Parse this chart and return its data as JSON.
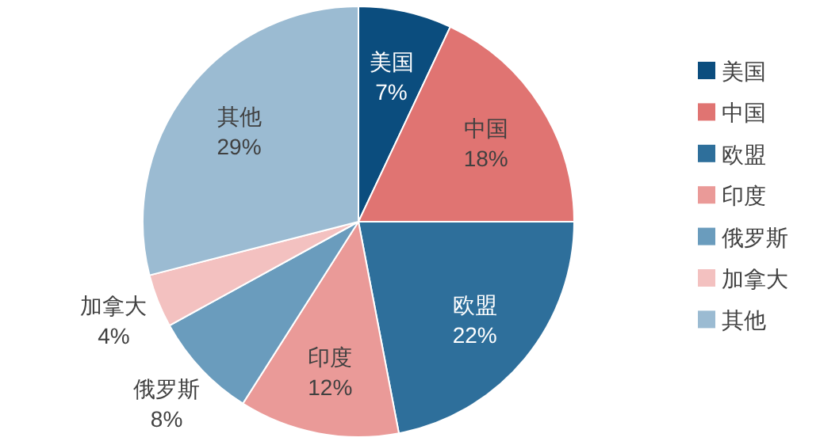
{
  "chart_data": {
    "type": "pie",
    "categories": [
      "美国",
      "中国",
      "欧盟",
      "印度",
      "俄罗斯",
      "加拿大",
      "其他"
    ],
    "values": [
      7,
      18,
      22,
      12,
      8,
      4,
      29
    ],
    "colors": [
      "#0b4d7e",
      "#e07472",
      "#2e6f9b",
      "#ea9a98",
      "#6a9cbd",
      "#f3c1c0",
      "#9bbbd2"
    ],
    "value_labels": [
      "7%",
      "18%",
      "22%",
      "12%",
      "8%",
      "4%",
      "29%"
    ],
    "legend": "right"
  }
}
